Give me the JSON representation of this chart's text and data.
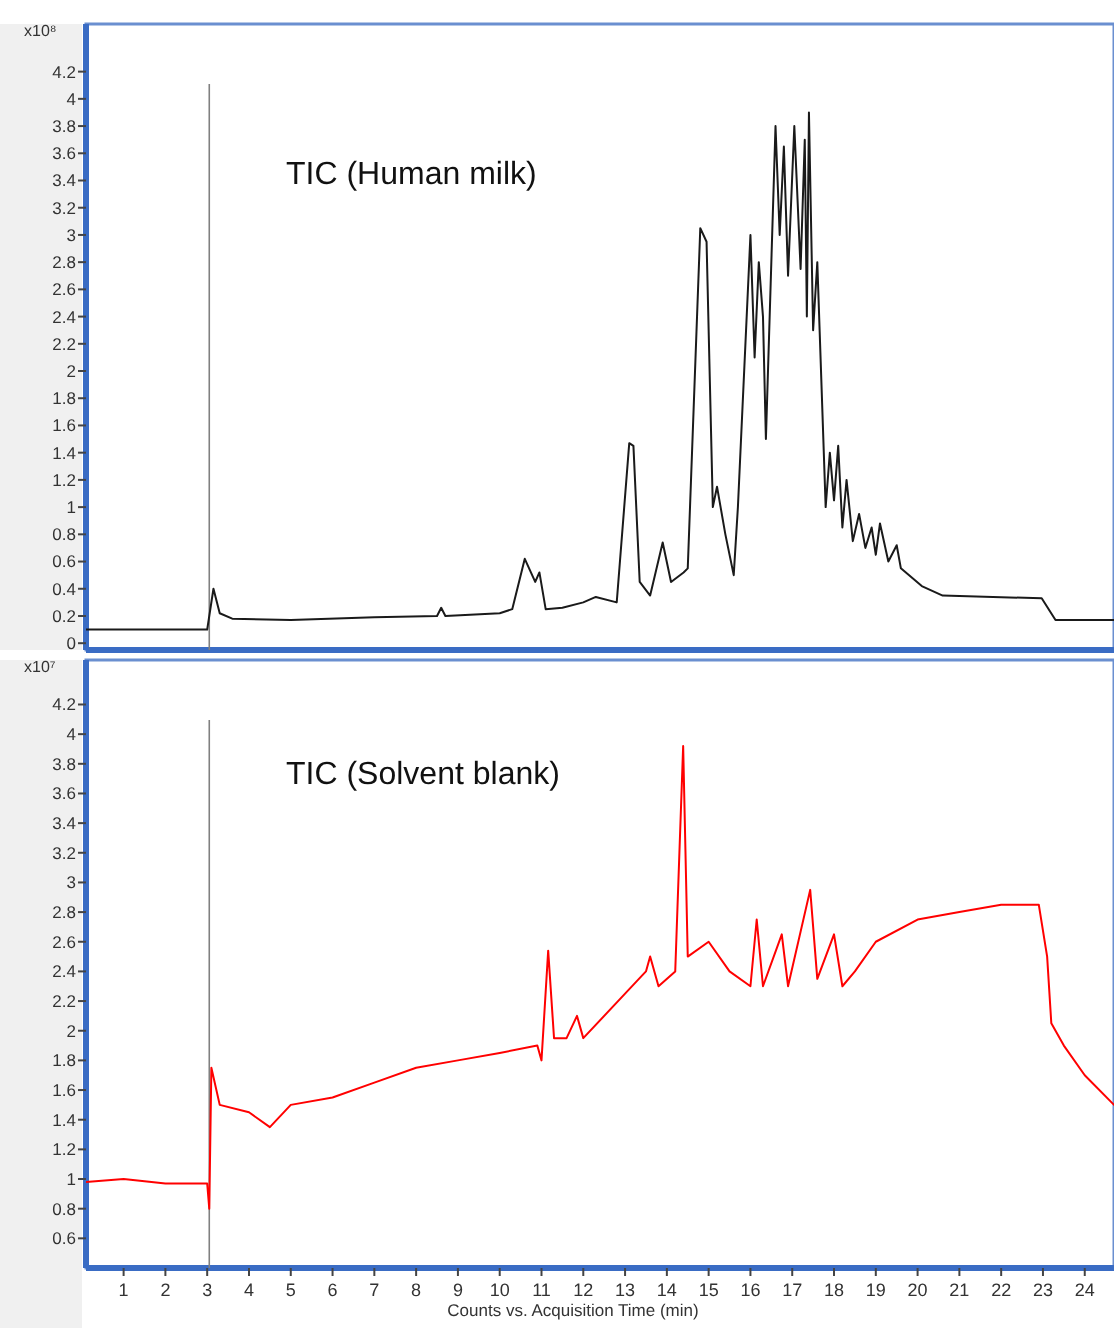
{
  "chart_data": [
    {
      "type": "line",
      "title": "TIC (Human milk)",
      "ylabel": "x10⁸",
      "tick_labels": "y",
      "xlim": [
        0.1,
        24.7
      ],
      "ylim": [
        -0.05,
        4.55
      ],
      "yticks": [
        0,
        0.2,
        0.4,
        0.6,
        0.8,
        1,
        1.2,
        1.4,
        1.6,
        1.8,
        2,
        2.2,
        2.4,
        2.6,
        2.8,
        3,
        3.2,
        3.4,
        3.6,
        3.8,
        4,
        4.2
      ],
      "ref_lines": [
        {
          "axis": "x",
          "value": 3.05,
          "color": "#808080"
        }
      ],
      "series": [
        {
          "color": "#1a1a1a",
          "x": [
            0.1,
            3.0,
            3.15,
            3.3,
            3.6,
            5,
            7,
            8.5,
            8.6,
            8.7,
            10,
            10.3,
            10.6,
            10.85,
            10.95,
            11.1,
            11.5,
            12,
            12.3,
            12.8,
            13.1,
            13.2,
            13.35,
            13.6,
            13.9,
            14.1,
            14.4,
            14.5,
            14.8,
            14.95,
            15.1,
            15.2,
            15.4,
            15.6,
            15.7,
            16.0,
            16.1,
            16.2,
            16.3,
            16.37,
            16.6,
            16.7,
            16.8,
            16.9,
            17.05,
            17.2,
            17.3,
            17.35,
            17.4,
            17.5,
            17.6,
            17.8,
            17.9,
            18.0,
            18.1,
            18.2,
            18.3,
            18.45,
            18.6,
            18.75,
            18.9,
            19.0,
            19.1,
            19.3,
            19.5,
            19.6,
            20.1,
            20.6,
            22.97,
            23.3,
            24.7
          ],
          "values": [
            0.1,
            0.1,
            0.4,
            0.22,
            0.18,
            0.17,
            0.19,
            0.2,
            0.26,
            0.2,
            0.22,
            0.25,
            0.62,
            0.45,
            0.52,
            0.25,
            0.26,
            0.3,
            0.34,
            0.3,
            1.47,
            1.45,
            0.45,
            0.35,
            0.74,
            0.45,
            0.52,
            0.55,
            3.05,
            2.95,
            1.0,
            1.15,
            0.8,
            0.5,
            1.0,
            3.0,
            2.1,
            2.8,
            2.4,
            1.5,
            3.8,
            3.0,
            3.65,
            2.7,
            3.8,
            2.75,
            3.7,
            2.4,
            3.9,
            2.3,
            2.8,
            1.0,
            1.4,
            1.05,
            1.45,
            0.85,
            1.2,
            0.75,
            0.95,
            0.7,
            0.85,
            0.65,
            0.88,
            0.6,
            0.72,
            0.55,
            0.42,
            0.35,
            0.33,
            0.17,
            0.17
          ]
        }
      ]
    },
    {
      "type": "line",
      "title": "TIC (Solvent blank)",
      "ylabel": "x10⁷",
      "xlabel": "Counts vs. Acquisition Time (min)",
      "tick_labels": "xy",
      "xlim": [
        0.1,
        24.7
      ],
      "ylim": [
        0.4,
        4.5
      ],
      "xticks": [
        1,
        2,
        3,
        4,
        5,
        6,
        7,
        8,
        9,
        10,
        11,
        12,
        13,
        14,
        15,
        16,
        17,
        18,
        19,
        20,
        21,
        22,
        23,
        24
      ],
      "yticks": [
        0.6,
        0.8,
        1,
        1.2,
        1.4,
        1.6,
        1.8,
        2,
        2.2,
        2.4,
        2.6,
        2.8,
        3,
        3.2,
        3.4,
        3.6,
        3.8,
        4,
        4.2
      ],
      "ref_lines": [
        {
          "axis": "x",
          "value": 3.05,
          "color": "#808080"
        }
      ],
      "series": [
        {
          "color": "#ff0000",
          "x": [
            0.1,
            1,
            2,
            3.0,
            3.05,
            3.1,
            3.3,
            4,
            4.5,
            5,
            6,
            7,
            8,
            9,
            10,
            10.9,
            11.0,
            11.16,
            11.3,
            11.6,
            11.85,
            12,
            13,
            13.5,
            13.6,
            13.8,
            14.2,
            14.39,
            14.5,
            15,
            15.5,
            16,
            16.15,
            16.3,
            16.75,
            16.9,
            17.43,
            17.6,
            18.0,
            18.2,
            18.5,
            19,
            20,
            21,
            22,
            22.9,
            23.1,
            23.2,
            23.5,
            24,
            24.7
          ],
          "values": [
            0.98,
            1.0,
            0.97,
            0.97,
            0.8,
            1.75,
            1.5,
            1.45,
            1.35,
            1.5,
            1.55,
            1.65,
            1.75,
            1.8,
            1.85,
            1.9,
            1.8,
            2.54,
            1.95,
            1.95,
            2.1,
            1.95,
            2.25,
            2.4,
            2.5,
            2.3,
            2.4,
            3.92,
            2.5,
            2.6,
            2.4,
            2.3,
            2.75,
            2.3,
            2.65,
            2.3,
            2.95,
            2.35,
            2.65,
            2.3,
            2.4,
            2.6,
            2.75,
            2.8,
            2.85,
            2.85,
            2.5,
            2.05,
            1.9,
            1.7,
            1.5
          ]
        }
      ]
    }
  ]
}
